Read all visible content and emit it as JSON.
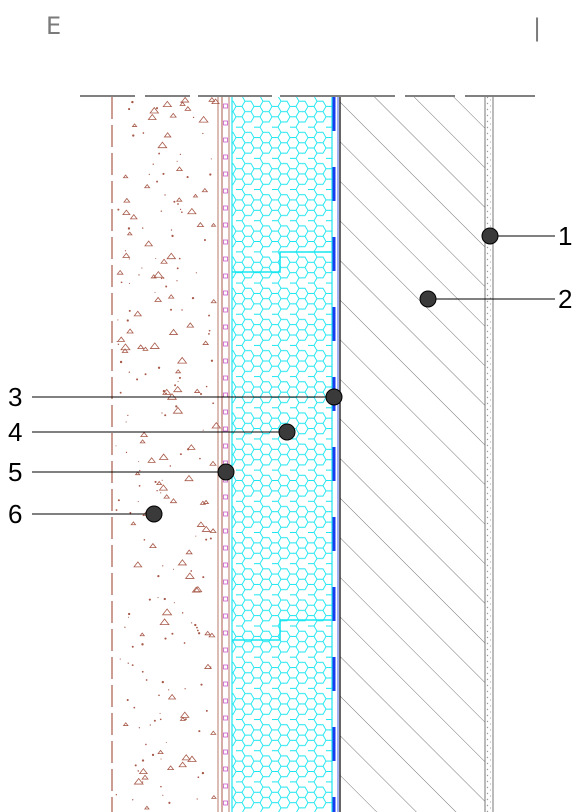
{
  "corner_marks": {
    "left": "E",
    "right": "|"
  },
  "callouts": [
    {
      "number": "1"
    },
    {
      "number": "2"
    },
    {
      "number": "3"
    },
    {
      "number": "4"
    },
    {
      "number": "5"
    },
    {
      "number": "6"
    }
  ],
  "colors": {
    "insulation": "#19e6f0",
    "membrane": "#1a3cf0",
    "concrete_speckle": "#a85a4a",
    "mesh_layer": "#c858c8",
    "hatch": "#555555",
    "plaster": "#9a9a9a"
  }
}
